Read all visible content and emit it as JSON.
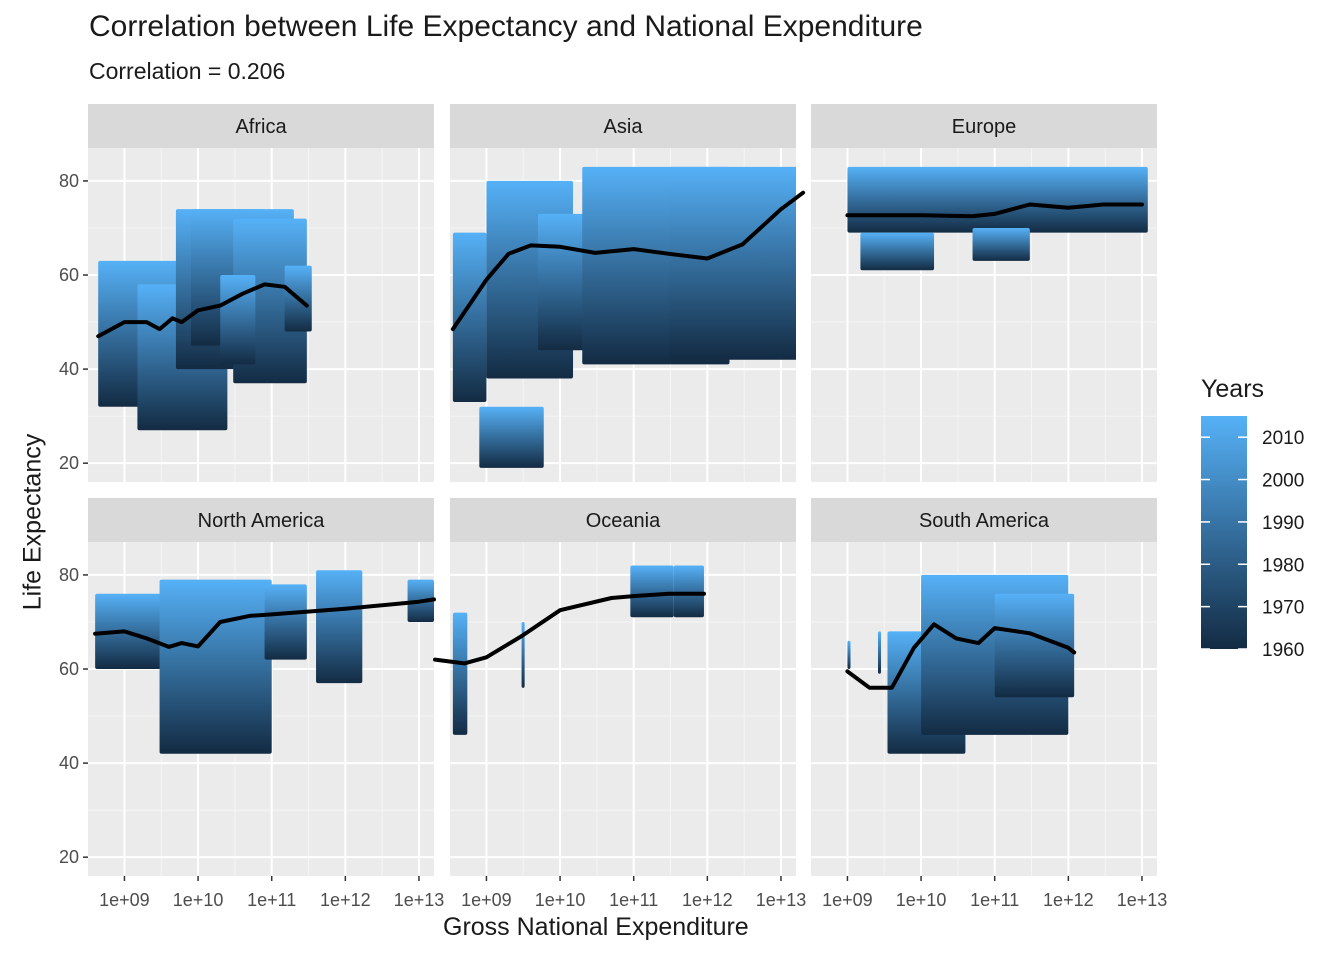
{
  "title": "Correlation between Life Expectancy and National Expenditure",
  "subtitle": "Correlation = 0.206",
  "chart_data": {
    "type": "scatter",
    "title": "Correlation between Life Expectancy and National Expenditure",
    "subtitle": "Correlation = 0.206",
    "xlabel": "Gross National Expenditure",
    "ylabel": "Life Expectancy",
    "x_scale": "log10",
    "xlim": [
      320000000.0,
      16000000000000.0
    ],
    "ylim": [
      16,
      87
    ],
    "x_ticks": [
      1000000000.0,
      10000000000.0,
      100000000000.0,
      1000000000000.0,
      10000000000000.0
    ],
    "x_tick_labels": [
      "1e+09",
      "1e+10",
      "1e+11",
      "1e+12",
      "1e+13"
    ],
    "y_ticks": [
      20,
      40,
      60,
      80
    ],
    "y_tick_labels": [
      "20",
      "40",
      "60",
      "80"
    ],
    "grid": true,
    "legend": {
      "title": "Years",
      "position": "right",
      "type": "colorbar",
      "range": [
        1960,
        2015
      ],
      "breaks": [
        1960,
        1970,
        1980,
        1990,
        2000,
        2010
      ],
      "low_color": "#132B43",
      "high_color": "#56B1F7"
    },
    "smooth_color": "#000000",
    "panels": [
      {
        "name": "Africa",
        "point_ranges": [
          {
            "x": [
              440000000.0,
              6500000000.0
            ],
            "y": [
              32,
              63
            ]
          },
          {
            "x": [
              1500000000.0,
              25000000000.0
            ],
            "y": [
              27,
              58
            ]
          },
          {
            "x": [
              5000000000.0,
              80000000000.0
            ],
            "y": [
              40,
              74
            ]
          },
          {
            "x": [
              8000000000.0,
              200000000000.0
            ],
            "y": [
              45,
              74
            ]
          },
          {
            "x": [
              30000000000.0,
              300000000000.0
            ],
            "y": [
              37,
              72
            ]
          },
          {
            "x": [
              150000000000.0,
              350000000000.0
            ],
            "y": [
              48,
              62
            ]
          },
          {
            "x": [
              20000000000.0,
              60000000000.0
            ],
            "y": [
              41,
              60
            ]
          }
        ],
        "smooth": {
          "x": [
            440000000.0,
            1000000000.0,
            2000000000.0,
            3000000000.0,
            4500000000.0,
            6000000000.0,
            10000000000.0,
            20000000000.0,
            40000000000.0,
            80000000000.0,
            150000000000.0,
            300000000000.0
          ],
          "y": [
            47,
            50,
            50,
            48.5,
            50.8,
            50,
            52.5,
            53.5,
            56,
            58,
            57.5,
            53.5
          ]
        }
      },
      {
        "name": "Asia",
        "point_ranges": [
          {
            "x": [
              350000000.0,
              1000000000.0
            ],
            "y": [
              33,
              69
            ]
          },
          {
            "x": [
              800000000.0,
              6000000000.0
            ],
            "y": [
              19,
              32
            ]
          },
          {
            "x": [
              1000000000.0,
              15000000000.0
            ],
            "y": [
              38,
              80
            ]
          },
          {
            "x": [
              5000000000.0,
              40000000000.0
            ],
            "y": [
              44,
              73
            ]
          },
          {
            "x": [
              20000000000.0,
              2000000000000.0
            ],
            "y": [
              41,
              83
            ]
          },
          {
            "x": [
              300000000000.0,
              20000000000000.0
            ],
            "y": [
              42,
              83
            ]
          }
        ],
        "smooth": {
          "x": [
            350000000.0,
            1000000000.0,
            2000000000.0,
            4000000000.0,
            10000000000.0,
            30000000000.0,
            100000000000.0,
            300000000000.0,
            1000000000000.0,
            3000000000000.0,
            10000000000000.0,
            20000000000000.0
          ],
          "y": [
            48.5,
            59,
            64.5,
            66.3,
            66,
            64.7,
            65.5,
            64.5,
            63.5,
            66.5,
            74,
            77.5
          ]
        }
      },
      {
        "name": "Europe",
        "point_ranges": [
          {
            "x": [
              1000000000.0,
              12000000000000.0
            ],
            "y": [
              69,
              83
            ]
          },
          {
            "x": [
              1500000000.0,
              15000000000.0
            ],
            "y": [
              61,
              69
            ]
          },
          {
            "x": [
              50000000000.0,
              300000000000.0
            ],
            "y": [
              63,
              70
            ]
          }
        ],
        "smooth": {
          "x": [
            1000000000.0,
            10000000000.0,
            50000000000.0,
            100000000000.0,
            300000000000.0,
            1000000000000.0,
            3000000000000.0,
            10000000000000.0
          ],
          "y": [
            72.7,
            72.7,
            72.5,
            73,
            75,
            74.3,
            75,
            75
          ]
        }
      },
      {
        "name": "North America",
        "point_ranges": [
          {
            "x": [
              400000000.0,
              10000000000.0
            ],
            "y": [
              60,
              76
            ]
          },
          {
            "x": [
              3000000000.0,
              100000000000.0
            ],
            "y": [
              42,
              79
            ]
          },
          {
            "x": [
              80000000000.0,
              300000000000.0
            ],
            "y": [
              62,
              78
            ]
          },
          {
            "x": [
              400000000000.0,
              1700000000000.0
            ],
            "y": [
              57,
              81
            ]
          },
          {
            "x": [
              7000000000000.0,
              16000000000000.0
            ],
            "y": [
              70,
              79
            ]
          }
        ],
        "smooth": {
          "x": [
            400000000.0,
            1000000000.0,
            2000000000.0,
            4000000000.0,
            6000000000.0,
            10000000000.0,
            20000000000.0,
            50000000000.0,
            100000000000.0,
            1000000000000.0,
            10000000000000.0,
            16000000000000.0
          ],
          "y": [
            67.5,
            68,
            66.5,
            64.7,
            65.5,
            64.8,
            70,
            71.3,
            71.6,
            72.8,
            74.3,
            74.8
          ]
        }
      },
      {
        "name": "Oceania",
        "point_ranges": [
          {
            "x": [
              200000000.0,
              220000000.0
            ],
            "y": [
              49,
              67
            ]
          },
          {
            "x": [
              350000000.0,
              550000000.0
            ],
            "y": [
              46,
              72
            ]
          },
          {
            "x": [
              3000000000.0,
              3300000000.0
            ],
            "y": [
              56,
              70
            ]
          },
          {
            "x": [
              90000000000.0,
              350000000000.0
            ],
            "y": [
              71,
              82
            ]
          },
          {
            "x": [
              350000000000.0,
              900000000000.0
            ],
            "y": [
              71,
              82
            ]
          }
        ],
        "smooth": {
          "x": [
            200000000.0,
            500000000.0,
            1000000000.0,
            3000000000.0,
            10000000000.0,
            50000000000.0,
            100000000000.0,
            300000000000.0,
            900000000000.0
          ],
          "y": [
            62,
            61.2,
            62.5,
            67,
            72.5,
            75.1,
            75.5,
            76,
            76
          ]
        }
      },
      {
        "name": "South America",
        "point_ranges": [
          {
            "x": [
              1000000000.0,
              1100000000.0
            ],
            "y": [
              60,
              66
            ]
          },
          {
            "x": [
              2600000000.0,
              2800000000.0
            ],
            "y": [
              59,
              68
            ]
          },
          {
            "x": [
              3500000000.0,
              40000000000.0
            ],
            "y": [
              42,
              68
            ]
          },
          {
            "x": [
              10000000000.0,
              1000000000000.0
            ],
            "y": [
              46,
              80
            ]
          },
          {
            "x": [
              100000000000.0,
              1200000000000.0
            ],
            "y": [
              54,
              76
            ]
          }
        ],
        "smooth": {
          "x": [
            1000000000.0,
            2000000000.0,
            4000000000.0,
            8000000000.0,
            15000000000.0,
            30000000000.0,
            60000000000.0,
            100000000000.0,
            300000000000.0,
            1000000000000.0,
            1200000000000.0
          ],
          "y": [
            59.5,
            56,
            56,
            64.5,
            69.5,
            66.5,
            65.5,
            68.7,
            67.6,
            64.5,
            63.5
          ]
        }
      }
    ]
  }
}
